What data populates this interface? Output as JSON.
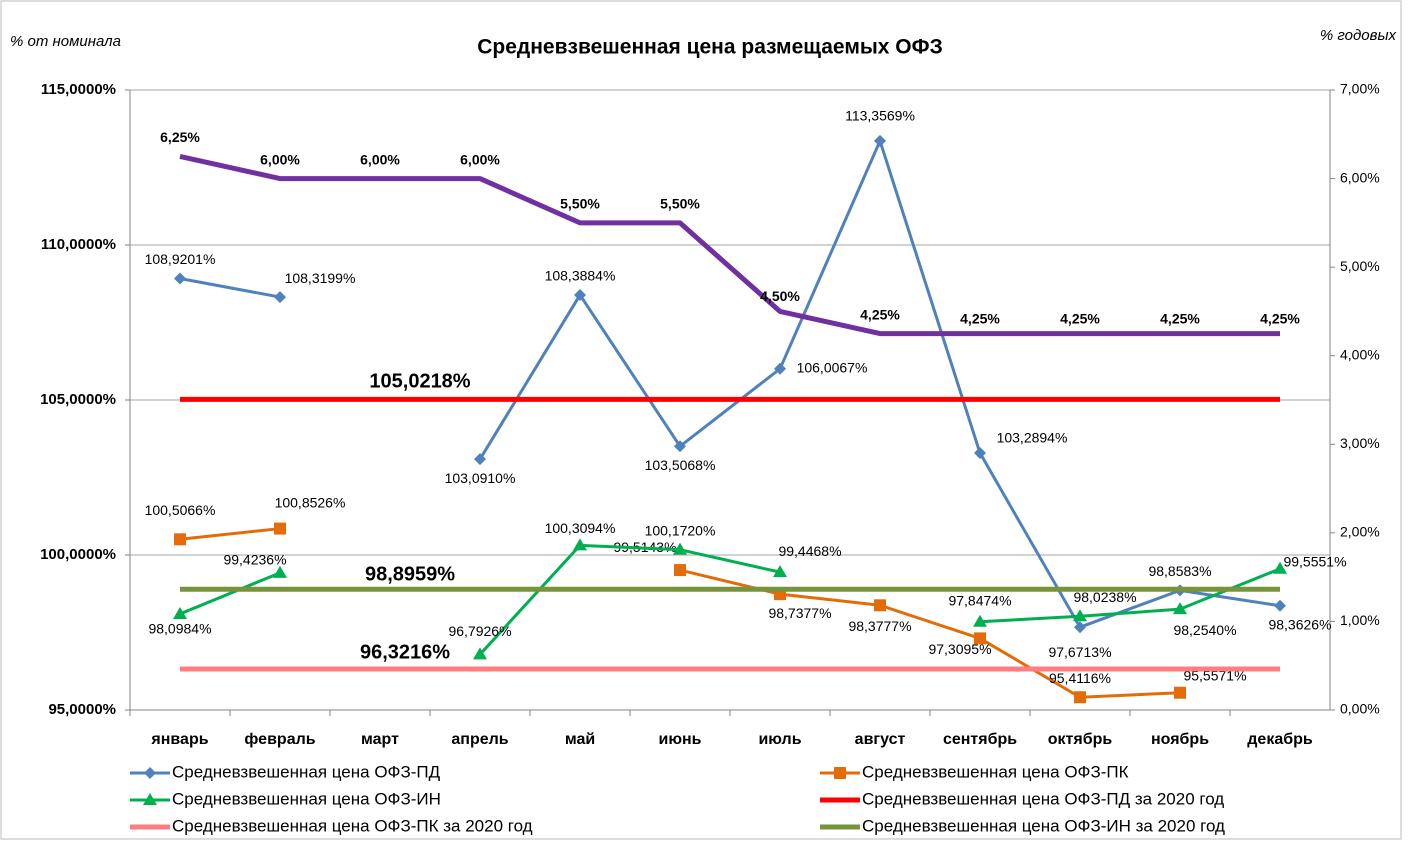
{
  "chart_data": {
    "type": "line",
    "title": "Средневзвешенная цена размещаемых ОФЗ",
    "y_label": "% от номинала",
    "y2_label": "% годовых",
    "categories": [
      "январь",
      "февраль",
      "март",
      "апрель",
      "май",
      "июнь",
      "июль",
      "август",
      "сентябрь",
      "октябрь",
      "ноябрь",
      "декабрь"
    ],
    "ylim": [
      95,
      115
    ],
    "yticks": [
      {
        "value": 95,
        "label": "95,0000%"
      },
      {
        "value": 100,
        "label": "100,0000%"
      },
      {
        "value": 105,
        "label": "105,0000%"
      },
      {
        "value": 110,
        "label": "110,0000%"
      },
      {
        "value": 115,
        "label": "115,0000%"
      }
    ],
    "y2lim": [
      0,
      7
    ],
    "y2ticks": [
      {
        "value": 0,
        "label": "0,00%"
      },
      {
        "value": 1,
        "label": "1,00%"
      },
      {
        "value": 2,
        "label": "2,00%"
      },
      {
        "value": 3,
        "label": "3,00%"
      },
      {
        "value": 4,
        "label": "4,00%"
      },
      {
        "value": 5,
        "label": "5,00%"
      },
      {
        "value": 6,
        "label": "6,00%"
      },
      {
        "value": 7,
        "label": "7,00%"
      }
    ],
    "grid": true,
    "legend": "bottom",
    "series": [
      {
        "name": "Средневзвешенная цена ОФЗ-ПД",
        "color": "#4f81bd",
        "marker": "diamond",
        "values": [
          108.9201,
          108.3199,
          null,
          103.091,
          108.3884,
          103.5068,
          106.0067,
          113.3569,
          103.2894,
          97.6713,
          98.8583,
          98.3626
        ],
        "value_labels": [
          "108,9201%",
          "108,3199%",
          null,
          "103,0910%",
          "108,3884%",
          "103,5068%",
          "106,0067%",
          "113,3569%",
          "103,2894%",
          "97,6713%",
          "98,8583%",
          "98,3626%"
        ]
      },
      {
        "name": "Средневзвешенная цена ОФЗ-ПК",
        "color": "#e36c09",
        "marker": "square",
        "values": [
          100.5066,
          100.8526,
          null,
          null,
          null,
          99.5143,
          98.7377,
          98.3777,
          97.3095,
          95.4116,
          95.5571,
          null
        ],
        "value_labels": [
          "100,5066%",
          "100,8526%",
          null,
          null,
          null,
          "99,5143%",
          "98,7377%",
          "98,3777%",
          "97,3095%",
          "95,4116%",
          "95,5571%",
          null
        ]
      },
      {
        "name": "Средневзвешенная цена ОФЗ-ИН",
        "color": "#00b050",
        "marker": "triangle",
        "values": [
          98.0984,
          99.4236,
          null,
          96.7926,
          100.3094,
          100.172,
          99.4468,
          null,
          97.8474,
          98.0238,
          98.254,
          99.5551
        ],
        "value_labels": [
          "98,0984%",
          "99,4236%",
          null,
          "96,7926%",
          "100,3094%",
          "100,1720%",
          "99,4468%",
          null,
          "97,8474%",
          "98,0238%",
          "98,2540%",
          "99,5551%"
        ]
      },
      {
        "name": "Средневзвешенная цена ОФЗ-ПД за 2020 год",
        "color": "#ff0000",
        "value": 105.0218,
        "value_label": "105,0218%"
      },
      {
        "name": "Средневзвешенная цена ОФЗ-ПК за 2020 год",
        "color": "#ff7c80",
        "value": 96.3216,
        "value_label": "96,3216%"
      },
      {
        "name": "Средневзвешенная цена ОФЗ-ИН за 2020 год",
        "color": "#77933c",
        "value": 98.8959,
        "value_label": "98,8959%"
      },
      {
        "color": "#7030a0",
        "axis": "y2",
        "values": [
          6.25,
          6.0,
          6.0,
          6.0,
          5.5,
          5.5,
          4.5,
          4.25,
          4.25,
          4.25,
          4.25,
          4.25
        ],
        "value_labels": [
          "6,25%",
          "6,00%",
          "6,00%",
          "6,00%",
          "5,50%",
          "5,50%",
          "4,50%",
          "4,25%",
          "4,25%",
          "4,25%",
          "4,25%",
          "4,25%"
        ]
      }
    ]
  }
}
